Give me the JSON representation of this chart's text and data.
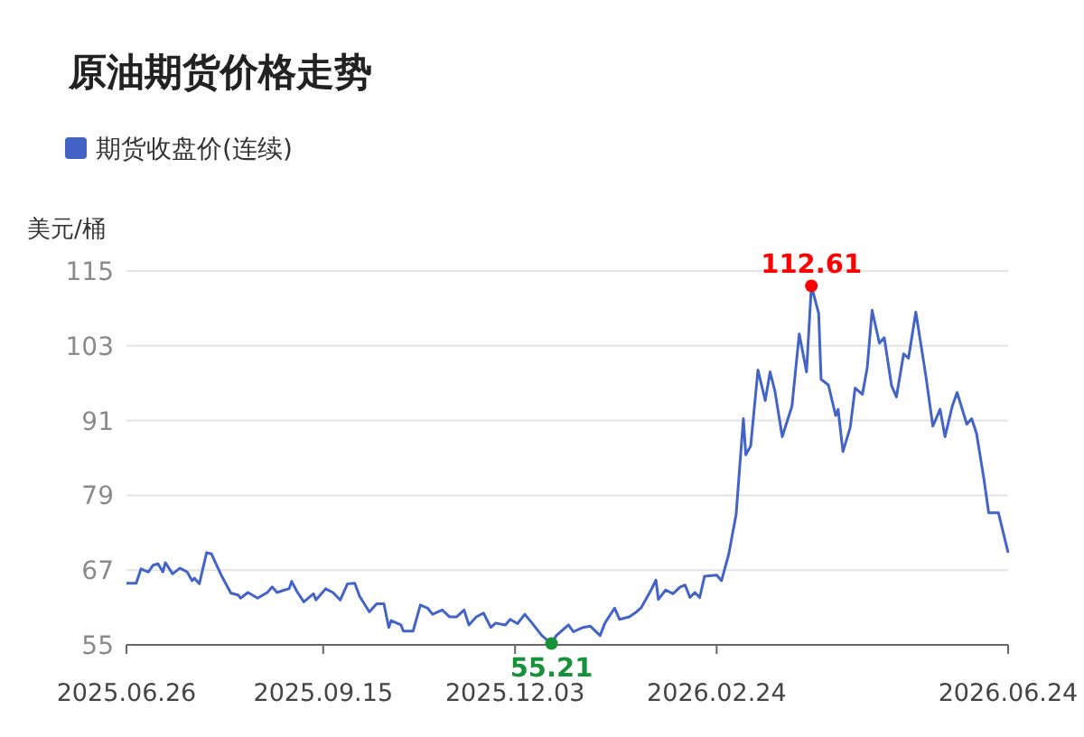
{
  "chart_data": {
    "type": "line",
    "title": "原油期货价格走势",
    "ylabel": "美元/桶",
    "legend": "top left",
    "grid": "y",
    "marker": "none",
    "line_style": "solid",
    "xlim": [
      "2025-06-26",
      "2026-06-24"
    ],
    "xticks": [
      {
        "value": "2025-06-26",
        "label": "2025.06.26"
      },
      {
        "value": "2025-09-15",
        "label": "2025.09.15"
      },
      {
        "value": "2025-12-03",
        "label": "2025.12.03"
      },
      {
        "value": "2026-02-24",
        "label": "2026.02.24"
      },
      {
        "value": "2026-06-24",
        "label": "2026.06.24"
      }
    ],
    "ylim": [
      55,
      115
    ],
    "yticks": [
      55,
      67,
      79,
      91,
      103,
      115
    ],
    "annotations": [
      {
        "text": "112.61",
        "x": "2026-04-04",
        "y": 112.61
      },
      {
        "text": "55.21",
        "x": "2025-12-18",
        "y": 55.21
      }
    ],
    "series": [
      {
        "name": "期货收盘价(连续)",
        "color": "#4463c6",
        "x": [
          "2025-06-26",
          "2025-06-30",
          "2025-07-02",
          "2025-07-05",
          "2025-07-07",
          "2025-07-09",
          "2025-07-11",
          "2025-07-12",
          "2025-07-15",
          "2025-07-18",
          "2025-07-21",
          "2025-07-23",
          "2025-07-24",
          "2025-07-26",
          "2025-07-29",
          "2025-07-31",
          "2025-08-04",
          "2025-08-08",
          "2025-08-11",
          "2025-08-12",
          "2025-08-15",
          "2025-08-19",
          "2025-08-23",
          "2025-08-25",
          "2025-08-27",
          "2025-08-30",
          "2025-09-01",
          "2025-09-02",
          "2025-09-04",
          "2025-09-07",
          "2025-09-11",
          "2025-09-12",
          "2025-09-16",
          "2025-09-19",
          "2025-09-22",
          "2025-09-25",
          "2025-09-28",
          "2025-09-30",
          "2025-10-04",
          "2025-10-07",
          "2025-10-10",
          "2025-10-12",
          "2025-10-13",
          "2025-10-17",
          "2025-10-18",
          "2025-10-22",
          "2025-10-25",
          "2025-10-28",
          "2025-10-30",
          "2025-11-03",
          "2025-11-06",
          "2025-11-09",
          "2025-11-12",
          "2025-11-14",
          "2025-11-17",
          "2025-11-20",
          "2025-11-23",
          "2025-11-25",
          "2025-11-29",
          "2025-12-01",
          "2025-12-04",
          "2025-12-07",
          "2025-12-10",
          "2025-12-14",
          "2025-12-18",
          "2025-12-20",
          "2025-12-25",
          "2025-12-27",
          "2025-12-31",
          "2026-01-03",
          "2026-01-07",
          "2026-01-09",
          "2026-01-13",
          "2026-01-15",
          "2026-01-19",
          "2026-01-22",
          "2026-01-24",
          "2026-01-28",
          "2026-01-30",
          "2026-01-31",
          "2026-02-03",
          "2026-02-06",
          "2026-02-09",
          "2026-02-11",
          "2026-02-13",
          "2026-02-15",
          "2026-02-17",
          "2026-02-19",
          "2026-02-24",
          "2026-02-26",
          "2026-03-01",
          "2026-03-04",
          "2026-03-07",
          "2026-03-08",
          "2026-03-10",
          "2026-03-13",
          "2026-03-16",
          "2026-03-18",
          "2026-03-20",
          "2026-03-23",
          "2026-03-27",
          "2026-03-30",
          "2026-04-02",
          "2026-04-04",
          "2026-04-07",
          "2026-04-08",
          "2026-04-11",
          "2026-04-14",
          "2026-04-15",
          "2026-04-17",
          "2026-04-20",
          "2026-04-22",
          "2026-04-25",
          "2026-04-27",
          "2026-04-29",
          "2026-05-02",
          "2026-05-04",
          "2026-05-07",
          "2026-05-09",
          "2026-05-12",
          "2026-05-14",
          "2026-05-17",
          "2026-05-21",
          "2026-05-24",
          "2026-05-27",
          "2026-05-29",
          "2026-06-01",
          "2026-06-03",
          "2026-06-07",
          "2026-06-09",
          "2026-06-11",
          "2026-06-14",
          "2026-06-16",
          "2026-06-20",
          "2026-06-24"
        ],
        "values": [
          64.9,
          64.9,
          67.2,
          66.7,
          67.8,
          68,
          66.7,
          68.2,
          66.4,
          67.3,
          66.7,
          65.3,
          65.7,
          64.8,
          69.8,
          69.6,
          66.2,
          63.3,
          63,
          62.5,
          63.4,
          62.5,
          63.4,
          64.3,
          63.4,
          63.8,
          64,
          65.2,
          63.7,
          61.9,
          63.2,
          62.2,
          64,
          63.4,
          62.2,
          64.8,
          64.9,
          62.8,
          60.3,
          61.6,
          61.6,
          57.8,
          58.9,
          58.2,
          57.2,
          57.2,
          61.4,
          60.9,
          59.9,
          60.6,
          59.5,
          59.5,
          60.6,
          58.2,
          59.5,
          60.1,
          57.8,
          58.5,
          58.2,
          59.1,
          58.4,
          59.9,
          58.5,
          56.5,
          55.21,
          56.5,
          58.2,
          57.1,
          57.8,
          58,
          56.5,
          58.5,
          60.9,
          59.1,
          59.5,
          60.3,
          61,
          63.8,
          65.4,
          62.3,
          63.8,
          63.2,
          64.3,
          64.6,
          62.6,
          63.4,
          62.6,
          66,
          66.2,
          65.3,
          69.6,
          75.9,
          91.3,
          85.5,
          86.9,
          99.1,
          94.2,
          98.8,
          95.7,
          88.4,
          93.3,
          104.9,
          98.8,
          112.61,
          108.2,
          97.6,
          96.7,
          91.8,
          92.8,
          86,
          89.9,
          96.2,
          95.2,
          99.5,
          108.7,
          103.4,
          104.3,
          96.6,
          94.8,
          101.7,
          101,
          108.4,
          98.5,
          90.1,
          92.8,
          88.4,
          93.3,
          95.5,
          90.4,
          91.3,
          88.9,
          81.7,
          76.2,
          76.2,
          69.8
        ]
      }
    ]
  }
}
